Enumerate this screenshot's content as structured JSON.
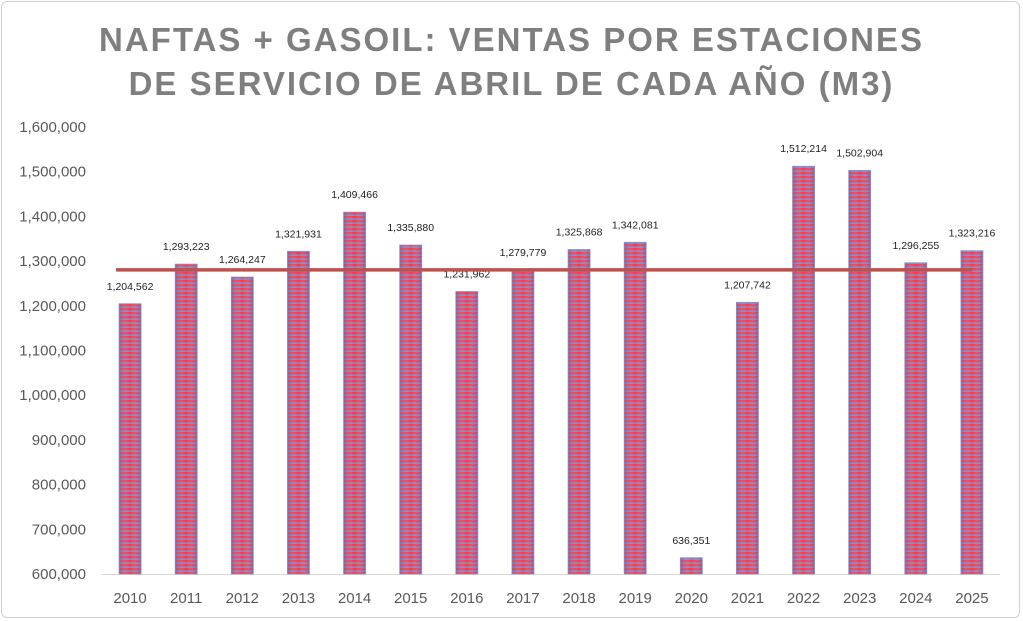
{
  "chart_data": {
    "type": "bar",
    "title_line1": "NAFTAS + GASOIL: VENTAS POR ESTACIONES",
    "title_line2": "DE SERVICIO DE ABRIL DE CADA AÑO (M3)",
    "xlabel": "",
    "ylabel": "",
    "ylim": [
      600000,
      1600000
    ],
    "yticks": [
      600000,
      700000,
      800000,
      900000,
      1000000,
      1100000,
      1200000,
      1300000,
      1400000,
      1500000,
      1600000
    ],
    "ytick_labels": [
      "600,000",
      "700,000",
      "800,000",
      "900,000",
      "1,000,000",
      "1,100,000",
      "1,200,000",
      "1,300,000",
      "1,400,000",
      "1,500,000",
      "1,600,000"
    ],
    "categories": [
      "2010",
      "2011",
      "2012",
      "2013",
      "2014",
      "2015",
      "2016",
      "2017",
      "2018",
      "2019",
      "2020",
      "2021",
      "2022",
      "2023",
      "2024",
      "2025"
    ],
    "values": [
      1204562,
      1293223,
      1264247,
      1321931,
      1409466,
      1335880,
      1231962,
      1279779,
      1325868,
      1342081,
      636351,
      1207742,
      1512214,
      1502904,
      1296255,
      1323216
    ],
    "data_labels": [
      "1,204,562",
      "1,293,223",
      "1,264,247",
      "1,321,931",
      "1,409,466",
      "1,335,880",
      "1,231,962",
      "1,279,779",
      "1,325,868",
      "1,342,081",
      "636,351",
      "1,207,742",
      "1,512,214",
      "1,502,904",
      "1,296,255",
      "1,323,216"
    ],
    "average_line": 1280480,
    "grid": false,
    "colors": {
      "bar_red": "#ff2a3a",
      "bar_blue": "#7f86c0",
      "average_line": "#c0504d",
      "title": "#7f7f7f"
    }
  }
}
